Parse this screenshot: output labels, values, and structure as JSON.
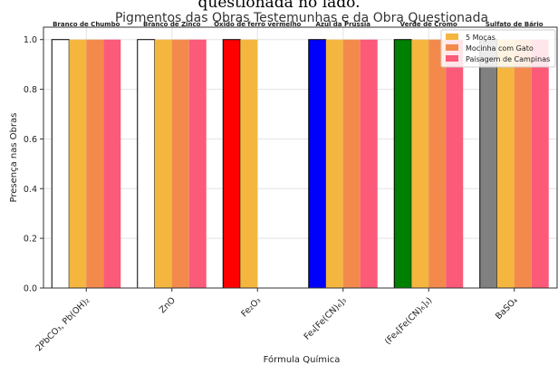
{
  "page": {
    "cropped_caption": "questionada no lado."
  },
  "chart_data": {
    "type": "bar",
    "title": "Pigmentos das Obras Testemunhas e da Obra Questionada",
    "xlabel": "Fórmula Química",
    "ylabel": "Presença nas Obras",
    "ylim": [
      0,
      1.05
    ],
    "yticks": [
      "0.0",
      "0.2",
      "0.4",
      "0.6",
      "0.8",
      "1.0"
    ],
    "grid": true,
    "legend_position": "top-right",
    "categories": [
      "2PbCO₃, Pb(OH)₂",
      "ZnO",
      "Fe₂O₃",
      "Fe₄[Fe(CN)₆]₃",
      "(Fe₄[Fe(CN)₆]₃)",
      "BaSO₄"
    ],
    "category_names": [
      "Branco de Chumbo",
      "Branco de Zinco",
      "Óxido de ferro vermelho",
      "Azul da Prússia",
      "Verde de Cromo",
      "Sulfato de Bário"
    ],
    "questioned_colors": [
      "#ffffff",
      "#ffffff",
      "#ff0000",
      "#0000ff",
      "#008000",
      "#808080"
    ],
    "series": [
      {
        "name": "5 Moças",
        "values": [
          1,
          1,
          1,
          1,
          1,
          1
        ],
        "color": "#f4b63f"
      },
      {
        "name": "Mocinha com Gato",
        "values": [
          1,
          1,
          0,
          1,
          1,
          1
        ],
        "color": "#f38a4c"
      },
      {
        "name": "Paisagem de Campinas",
        "values": [
          1,
          1,
          0,
          1,
          1,
          1
        ],
        "color": "#fb5a78"
      }
    ]
  }
}
